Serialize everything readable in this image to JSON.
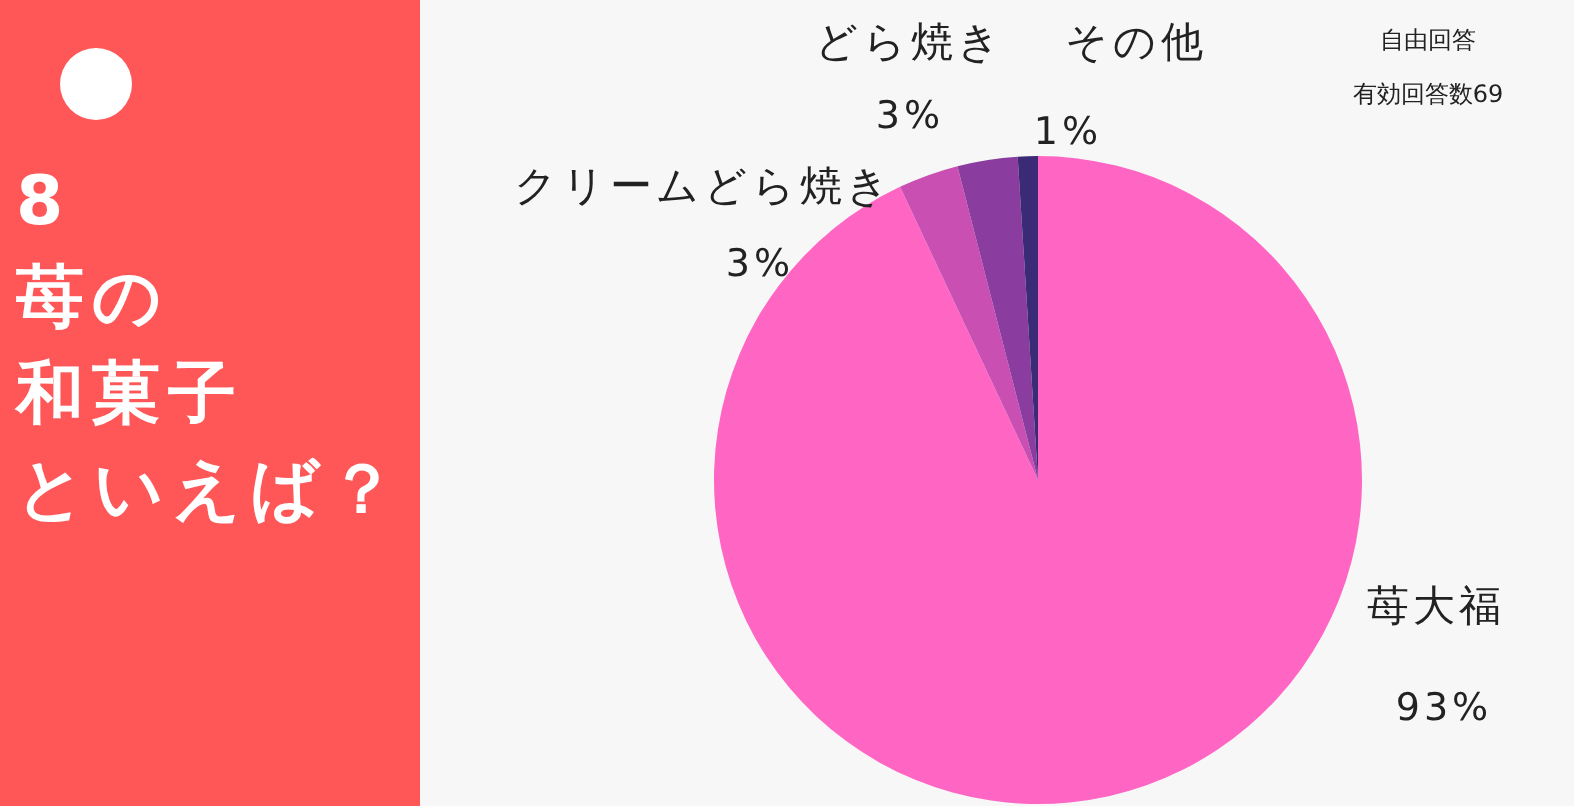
{
  "chart_data": {
    "type": "pie",
    "title": "8苺の和菓子といえば？",
    "categories": [
      "苺大福",
      "クリームどら焼き",
      "どら焼き",
      "その他"
    ],
    "values": [
      93,
      3,
      3,
      1
    ],
    "value_labels": [
      "93%",
      "3%",
      "3%",
      "1%"
    ],
    "colors": [
      "#ff66c4",
      "#c94fb3",
      "#8a3d9f",
      "#3b2a75"
    ],
    "annotations": [
      "自由回答",
      "有効回答数69"
    ]
  }
}
